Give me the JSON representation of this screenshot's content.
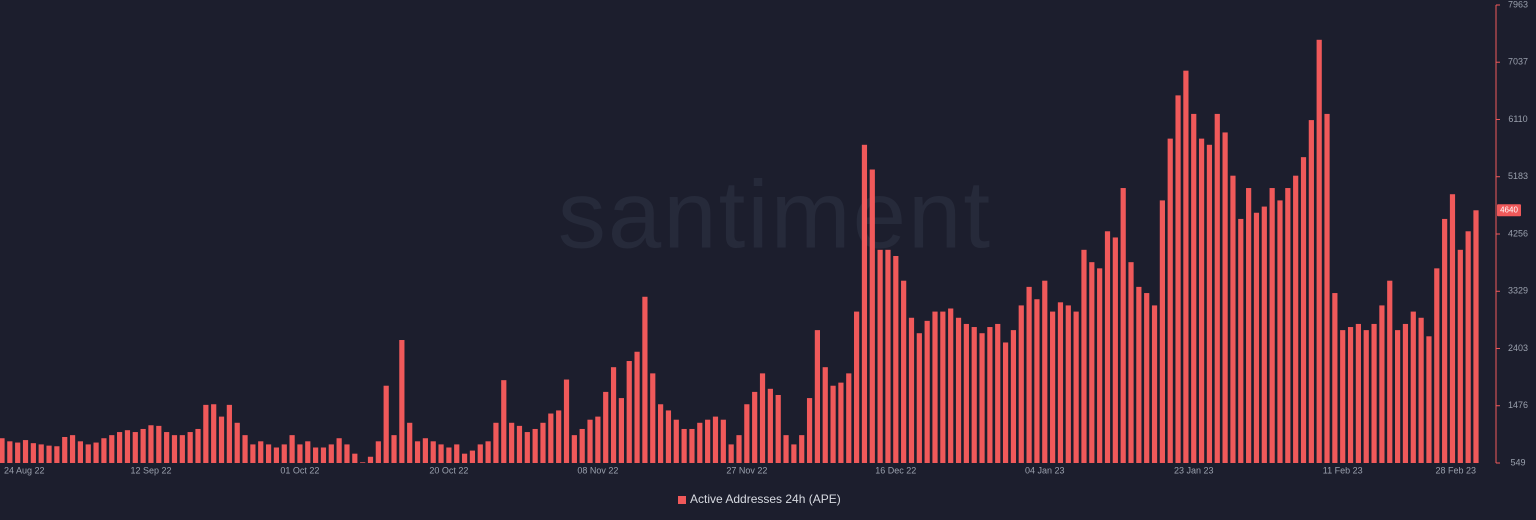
{
  "chart_data": {
    "type": "bar",
    "watermark": "santiment",
    "categories": [
      "24 Aug 22",
      null,
      null,
      null,
      null,
      null,
      null,
      null,
      null,
      null,
      null,
      null,
      null,
      null,
      null,
      null,
      null,
      null,
      null,
      "12 Sep 22",
      null,
      null,
      null,
      null,
      null,
      null,
      null,
      null,
      null,
      null,
      null,
      null,
      null,
      null,
      null,
      null,
      null,
      null,
      "01 Oct 22",
      null,
      null,
      null,
      null,
      null,
      null,
      null,
      null,
      null,
      null,
      null,
      null,
      null,
      null,
      null,
      null,
      null,
      null,
      "20 Oct 22",
      null,
      null,
      null,
      null,
      null,
      null,
      null,
      null,
      null,
      null,
      null,
      null,
      null,
      null,
      null,
      null,
      null,
      null,
      "08 Nov 22",
      null,
      null,
      null,
      null,
      null,
      null,
      null,
      null,
      null,
      null,
      null,
      null,
      null,
      null,
      null,
      null,
      null,
      null,
      "27 Nov 22",
      null,
      null,
      null,
      null,
      null,
      null,
      null,
      null,
      null,
      null,
      null,
      null,
      null,
      null,
      null,
      null,
      null,
      null,
      "16 Dec 22",
      null,
      null,
      null,
      null,
      null,
      null,
      null,
      null,
      null,
      null,
      null,
      null,
      null,
      null,
      null,
      null,
      null,
      null,
      "04 Jan 23",
      null,
      null,
      null,
      null,
      null,
      null,
      null,
      null,
      null,
      null,
      null,
      null,
      null,
      null,
      null,
      null,
      null,
      null,
      "23 Jan 23",
      null,
      null,
      null,
      null,
      null,
      null,
      null,
      null,
      null,
      null,
      null,
      null,
      null,
      null,
      null,
      null,
      null,
      null,
      "11 Feb 23",
      null,
      null,
      null,
      null,
      null,
      null,
      null,
      null,
      null,
      null,
      null,
      null,
      null,
      null,
      null,
      null,
      "28 Feb 23"
    ],
    "series": [
      {
        "name": "Active Addresses 24h (APE)",
        "color": "#f0595a",
        "values": [
          950,
          900,
          880,
          920,
          870,
          850,
          830,
          820,
          970,
          1000,
          900,
          850,
          880,
          950,
          1000,
          1050,
          1080,
          1050,
          1100,
          1160,
          1150,
          1050,
          1000,
          1000,
          1050,
          1100,
          1490,
          1500,
          1300,
          1490,
          1200,
          1000,
          850,
          900,
          850,
          800,
          850,
          1000,
          850,
          900,
          800,
          800,
          850,
          950,
          850,
          700,
          560,
          650,
          900,
          1800,
          1000,
          2540,
          1200,
          900,
          950,
          900,
          850,
          800,
          850,
          700,
          750,
          850,
          900,
          1200,
          1890,
          1200,
          1150,
          1050,
          1100,
          1200,
          1350,
          1400,
          1900,
          1000,
          1100,
          1250,
          1300,
          1700,
          2100,
          1600,
          2200,
          2350,
          3240,
          2000,
          1500,
          1400,
          1250,
          1100,
          1100,
          1200,
          1250,
          1300,
          1250,
          850,
          1000,
          1500,
          1700,
          2000,
          1750,
          1650,
          1000,
          850,
          1000,
          1600,
          2700,
          2100,
          1800,
          1850,
          2000,
          3000,
          5700,
          5300,
          4000,
          4000,
          3900,
          3500,
          2900,
          2650,
          2850,
          3000,
          3000,
          3050,
          2900,
          2800,
          2750,
          2650,
          2750,
          2800,
          2500,
          2700,
          3100,
          3400,
          3200,
          3500,
          3000,
          3150,
          3100,
          3000,
          4000,
          3800,
          3700,
          4300,
          4200,
          5000,
          3800,
          3400,
          3300,
          3100,
          4800,
          5800,
          6500,
          6900,
          6200,
          5800,
          5700,
          6200,
          5900,
          5200,
          4500,
          5000,
          4600,
          4700,
          5000,
          4800,
          5000,
          5200,
          5500,
          6100,
          7400,
          6200,
          3300,
          2700,
          2750,
          2800,
          2700,
          2800,
          3100,
          3500,
          2700,
          2800,
          3000,
          2900,
          2600,
          3700,
          4500,
          4900,
          4000,
          4300,
          4640
        ]
      }
    ],
    "ylim": [
      549,
      7963
    ],
    "yticks": [
      549,
      1476,
      2403,
      3329,
      4256,
      5183,
      6110,
      7037,
      7963
    ]
  }
}
